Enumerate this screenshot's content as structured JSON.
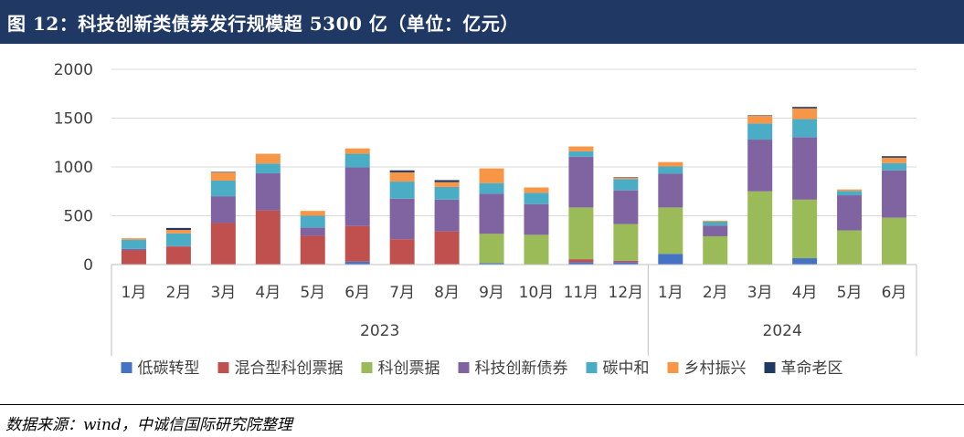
{
  "header": {
    "title": "图 12：科技创新类债券发行规模超 5300 亿（单位：亿元）"
  },
  "footer": {
    "source": "数据来源：wind，中诚信国际研究院整理"
  },
  "chart_data": {
    "type": "bar",
    "stacked": true,
    "categories": [
      "1月",
      "2月",
      "3月",
      "4月",
      "5月",
      "6月",
      "7月",
      "8月",
      "9月",
      "10月",
      "11月",
      "12月",
      "1月",
      "2月",
      "3月",
      "4月",
      "5月",
      "6月"
    ],
    "groups": [
      {
        "label": "2023",
        "count": 12
      },
      {
        "label": "2024",
        "count": 6
      }
    ],
    "ylim": [
      0,
      2000
    ],
    "yticks": [
      0,
      500,
      1000,
      1500,
      2000
    ],
    "grid": true,
    "legend_position": "bottom",
    "series": [
      {
        "name": "低碳转型",
        "color": "#4472c4",
        "values": [
          0,
          0,
          0,
          0,
          0,
          30,
          0,
          0,
          15,
          0,
          25,
          25,
          110,
          0,
          0,
          65,
          0,
          0
        ]
      },
      {
        "name": "混合型科创票据",
        "color": "#c0504d",
        "values": [
          145,
          185,
          425,
          555,
          295,
          365,
          260,
          340,
          0,
          0,
          30,
          15,
          0,
          0,
          0,
          0,
          0,
          0
        ]
      },
      {
        "name": "科创票据",
        "color": "#9bbb59",
        "values": [
          0,
          0,
          0,
          0,
          0,
          0,
          0,
          0,
          300,
          305,
          530,
          375,
          475,
          290,
          750,
          600,
          350,
          480
        ]
      },
      {
        "name": "科技创新债券",
        "color": "#8064a2",
        "values": [
          15,
          5,
          275,
          380,
          85,
          600,
          415,
          325,
          410,
          315,
          520,
          345,
          345,
          110,
          530,
          640,
          360,
          485
        ]
      },
      {
        "name": "碳中和",
        "color": "#4bacc6",
        "values": [
          95,
          130,
          160,
          100,
          120,
          140,
          175,
          130,
          110,
          115,
          55,
          115,
          75,
          40,
          165,
          185,
          45,
          75
        ]
      },
      {
        "name": "乡村振兴",
        "color": "#f79646",
        "values": [
          15,
          35,
          85,
          100,
          50,
          55,
          95,
          50,
          150,
          55,
          50,
          15,
          45,
          10,
          80,
          110,
          15,
          55
        ]
      },
      {
        "name": "革命老区",
        "color": "#1f3864",
        "values": [
          0,
          20,
          5,
          0,
          0,
          0,
          20,
          20,
          0,
          0,
          0,
          5,
          0,
          0,
          5,
          15,
          0,
          15
        ]
      }
    ]
  }
}
